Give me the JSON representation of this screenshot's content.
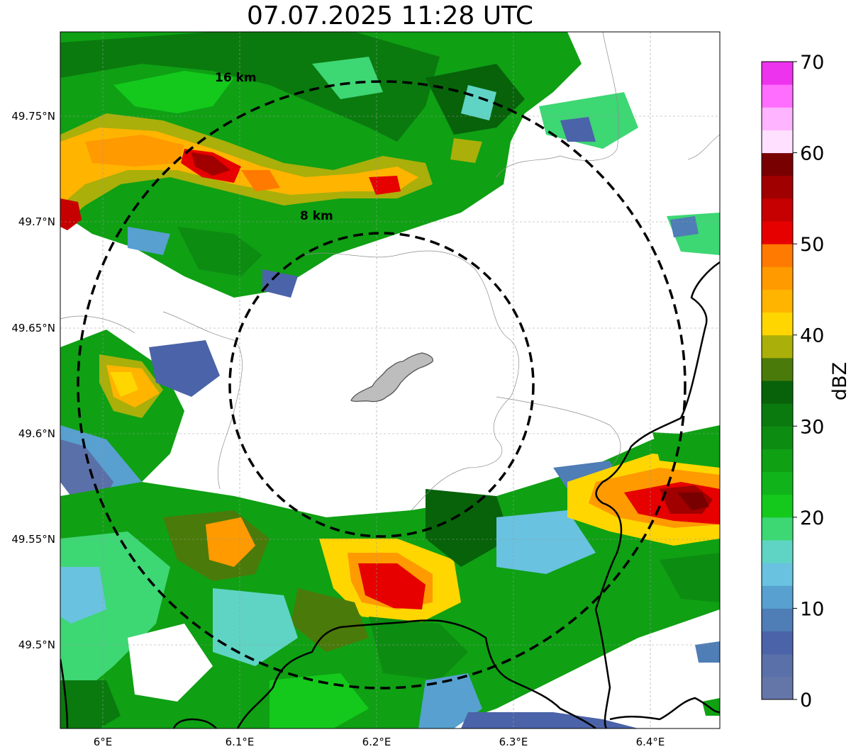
{
  "title": "07.07.2025 11:28 UTC",
  "map": {
    "ring_labels": [
      "16 km",
      "8 km"
    ],
    "lon_ticks": [
      "6°E",
      "6.1°E",
      "6.2°E",
      "6.3°E",
      "6.4°E"
    ],
    "lat_ticks": [
      "49.75°N",
      "49.7°N",
      "49.65°N",
      "49.6°N",
      "49.55°N",
      "49.5°N"
    ]
  },
  "colorbar": {
    "label": "dBZ",
    "ticks": [
      "0",
      "10",
      "20",
      "30",
      "40",
      "50",
      "60",
      "70"
    ],
    "colors": [
      "#6475a8",
      "#5a70a8",
      "#4b63a8",
      "#4f7db5",
      "#57a0cf",
      "#69c2df",
      "#5fd4c4",
      "#3dd774",
      "#14c91c",
      "#10b41a",
      "#0fa014",
      "#0d8c12",
      "#0a7a0e",
      "#07620a",
      "#4a7a0a",
      "#aaaf0a",
      "#ffd600",
      "#ffb400",
      "#ff9a00",
      "#ff7a00",
      "#e60000",
      "#c60000",
      "#a00000",
      "#780000",
      "#ffe0ff",
      "#ffb4ff",
      "#ff6eff",
      "#ee33ee"
    ]
  }
}
